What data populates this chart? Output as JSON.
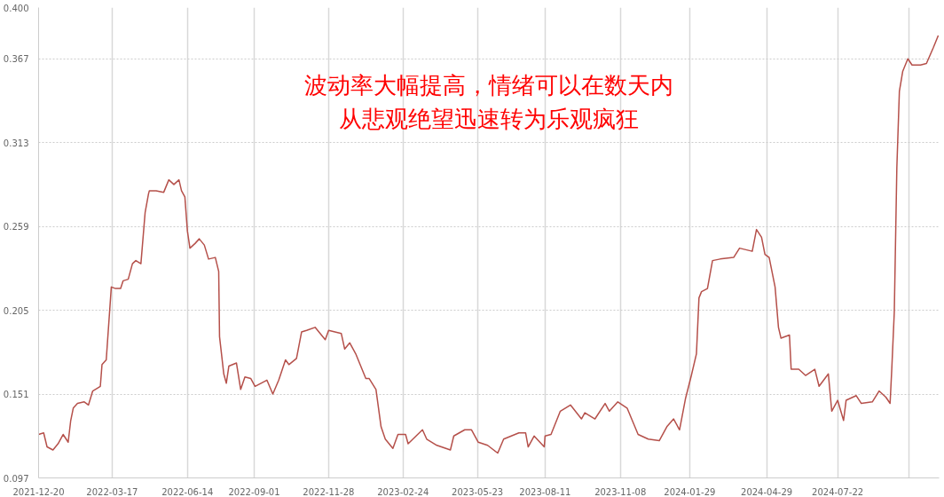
{
  "chart_data": {
    "type": "line",
    "annotations": [
      "波动率大幅提高，情绪可以在数天内",
      "从悲观绝望迅速转为乐观疯狂"
    ],
    "x": [
      "2021-12-20",
      "2021-12-26",
      "2021-12-30",
      "2022-01-06",
      "2022-01-12",
      "2022-01-18",
      "2022-01-24",
      "2022-01-27",
      "2022-01-30",
      "2022-02-04",
      "2022-02-12",
      "2022-02-17",
      "2022-02-22",
      "2022-03-03",
      "2022-03-05",
      "2022-03-10",
      "2022-03-16",
      "2022-03-21",
      "2022-03-27",
      "2022-03-30",
      "2022-04-05",
      "2022-04-10",
      "2022-04-14",
      "2022-04-20",
      "2022-04-25",
      "2022-04-29",
      "2022-04-30",
      "2022-05-08",
      "2022-05-17",
      "2022-05-23",
      "2022-05-29",
      "2022-06-04",
      "2022-06-07",
      "2022-06-11",
      "2022-06-14",
      "2022-06-17",
      "2022-06-23",
      "2022-06-28",
      "2022-07-04",
      "2022-07-09",
      "2022-07-17",
      "2022-07-21",
      "2022-07-22",
      "2022-07-27",
      "2022-07-30",
      "2022-08-02",
      "2022-08-11",
      "2022-08-16",
      "2022-08-21",
      "2022-08-28",
      "2022-09-02",
      "2022-09-16",
      "2022-09-23",
      "2022-09-30",
      "2022-10-08",
      "2022-10-12",
      "2022-10-21",
      "2022-10-27",
      "2022-11-02",
      "2022-11-12",
      "2022-11-24",
      "2022-11-28",
      "2022-12-13",
      "2022-12-17",
      "2022-12-23",
      "2022-12-30",
      "2023-01-11",
      "2023-01-15",
      "2023-01-23",
      "2023-01-29",
      "2023-02-03",
      "2023-02-12",
      "2023-02-18",
      "2023-02-27",
      "2023-03-02",
      "2023-03-19",
      "2023-03-24",
      "2023-04-05",
      "2023-04-21",
      "2023-04-25",
      "2023-05-08",
      "2023-05-16",
      "2023-05-24",
      "2023-06-04",
      "2023-06-16",
      "2023-06-23",
      "2023-07-02",
      "2023-07-11",
      "2023-07-19",
      "2023-07-22",
      "2023-07-29",
      "2023-08-10",
      "2023-08-11",
      "2023-08-18",
      "2023-08-29",
      "2023-09-10",
      "2023-09-23",
      "2023-09-27",
      "2023-10-09",
      "2023-10-21",
      "2023-10-26",
      "2023-11-05",
      "2023-11-16",
      "2023-11-29",
      "2023-12-11",
      "2023-12-24",
      "2024-01-02",
      "2024-01-10",
      "2024-01-17",
      "2024-01-24",
      "2024-01-31",
      "2024-02-06",
      "2024-02-09",
      "2024-02-12",
      "2024-02-19",
      "2024-02-25",
      "2024-03-05",
      "2024-03-21",
      "2024-03-28",
      "2024-04-12",
      "2024-04-17",
      "2024-04-23",
      "2024-04-27",
      "2024-05-02",
      "2024-05-09",
      "2024-05-13",
      "2024-05-16",
      "2024-05-26",
      "2024-05-28",
      "2024-06-06",
      "2024-06-14",
      "2024-06-25",
      "2024-06-30",
      "2024-07-11",
      "2024-07-15",
      "2024-07-22",
      "2024-07-29",
      "2024-08-01",
      "2024-08-13",
      "2024-08-19",
      "2024-09-01",
      "2024-09-09",
      "2024-09-17",
      "2024-09-22",
      "2024-09-24",
      "2024-09-27",
      "2024-09-30",
      "2024-10-03",
      "2024-10-07",
      "2024-10-13",
      "2024-10-18",
      "2024-10-28",
      "2024-11-04",
      "2024-11-12",
      "2024-11-18"
    ],
    "series": [
      {
        "color": "#b5504a",
        "values": [
          0.125,
          0.126,
          0.117,
          0.115,
          0.119,
          0.125,
          0.12,
          0.134,
          0.142,
          0.145,
          0.146,
          0.144,
          0.153,
          0.156,
          0.17,
          0.173,
          0.22,
          0.219,
          0.219,
          0.224,
          0.225,
          0.235,
          0.237,
          0.235,
          0.268,
          0.28,
          0.282,
          0.282,
          0.281,
          0.289,
          0.286,
          0.289,
          0.282,
          0.278,
          0.256,
          0.245,
          0.248,
          0.251,
          0.247,
          0.238,
          0.239,
          0.23,
          0.188,
          0.164,
          0.158,
          0.169,
          0.171,
          0.154,
          0.162,
          0.161,
          0.156,
          0.16,
          0.151,
          0.16,
          0.173,
          0.17,
          0.174,
          0.191,
          0.192,
          0.194,
          0.186,
          0.192,
          0.19,
          0.18,
          0.184,
          0.177,
          0.161,
          0.161,
          0.154,
          0.13,
          0.122,
          0.116,
          0.125,
          0.125,
          0.119,
          0.128,
          0.122,
          0.118,
          0.115,
          0.124,
          0.128,
          0.128,
          0.12,
          0.118,
          0.113,
          0.122,
          0.124,
          0.126,
          0.126,
          0.117,
          0.124,
          0.117,
          0.124,
          0.125,
          0.14,
          0.144,
          0.135,
          0.139,
          0.135,
          0.145,
          0.14,
          0.146,
          0.142,
          0.125,
          0.122,
          0.121,
          0.13,
          0.135,
          0.128,
          0.148,
          0.163,
          0.177,
          0.213,
          0.217,
          0.219,
          0.237,
          0.238,
          0.239,
          0.245,
          0.243,
          0.257,
          0.252,
          0.241,
          0.239,
          0.22,
          0.194,
          0.187,
          0.189,
          0.167,
          0.167,
          0.163,
          0.167,
          0.156,
          0.164,
          0.14,
          0.147,
          0.134,
          0.147,
          0.15,
          0.145,
          0.146,
          0.153,
          0.149,
          0.145,
          0.167,
          0.204,
          0.297,
          0.346,
          0.359,
          0.367,
          0.363,
          0.363,
          0.364,
          0.374,
          0.382
        ]
      }
    ],
    "xlim": [
      "2021-12-20",
      "2024-11-19"
    ],
    "xticks": [
      "2021-12-20",
      "2022-03-17",
      "2022-06-14",
      "2022-09-01",
      "2022-11-28",
      "2023-02-24",
      "2023-05-23",
      "2023-08-11",
      "2023-11-08",
      "2024-01-29",
      "2024-04-29",
      "2024-07-22",
      {
        "value": "2024-10-14",
        "label": null
      }
    ],
    "ylim": [
      0.097,
      0.4
    ],
    "yticks": [
      0.097,
      0.151,
      0.205,
      0.259,
      0.313,
      0.367,
      {
        "value": 0.4,
        "label": "0.400"
      }
    ],
    "grid": true,
    "line_style": "solid"
  }
}
